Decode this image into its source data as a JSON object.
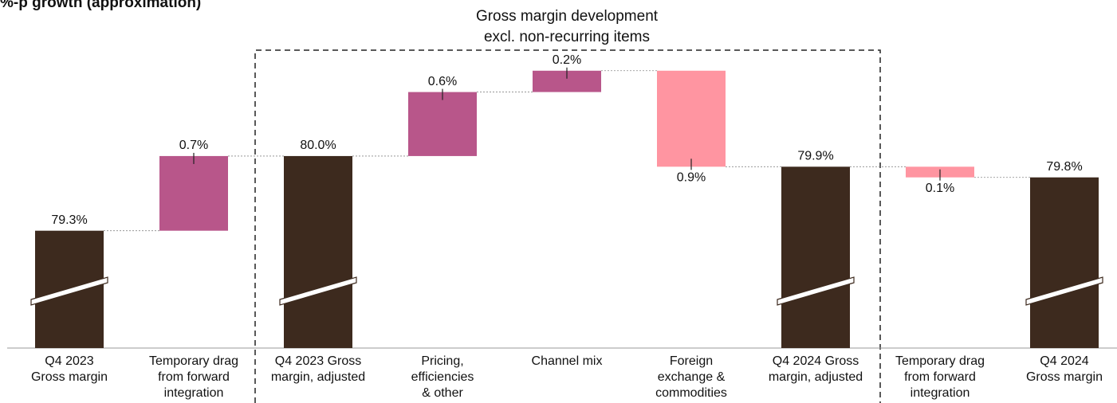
{
  "chart_data": {
    "type": "waterfall",
    "title": "%-p growth (approximation)",
    "annotation": [
      "Gross margin development",
      "excl. non-recurring items"
    ],
    "categories": [
      [
        "Q4 2023",
        "Gross margin"
      ],
      [
        "Temporary drag",
        "from forward",
        "integration"
      ],
      [
        "Q4 2023 Gross",
        "margin, adjusted"
      ],
      [
        "Pricing,",
        "efficiencies",
        "& other"
      ],
      [
        "Channel mix"
      ],
      [
        "Foreign",
        "exchange &",
        "commodities"
      ],
      [
        "Q4 2024 Gross",
        "margin, adjusted"
      ],
      [
        "Temporary drag",
        "from forward",
        "integration"
      ],
      [
        "Q4 2024",
        "Gross margin"
      ]
    ],
    "measures": [
      "total",
      "relative",
      "total",
      "relative",
      "relative",
      "relative",
      "total",
      "relative",
      "total"
    ],
    "values": [
      79.3,
      0.7,
      80.0,
      0.6,
      0.2,
      -0.9,
      79.9,
      -0.1,
      79.8
    ],
    "value_labels": [
      "79.3%",
      "0.7%",
      "80.0%",
      "0.6%",
      "0.2%",
      "0.9%",
      "79.9%",
      "0.1%",
      "79.8%"
    ],
    "colors": {
      "total": "#3d2a1e",
      "increase": "#b8568a",
      "decrease": "#ff95a1"
    },
    "ylim": [
      78.2,
      81.0
    ],
    "broken_axis": true
  }
}
